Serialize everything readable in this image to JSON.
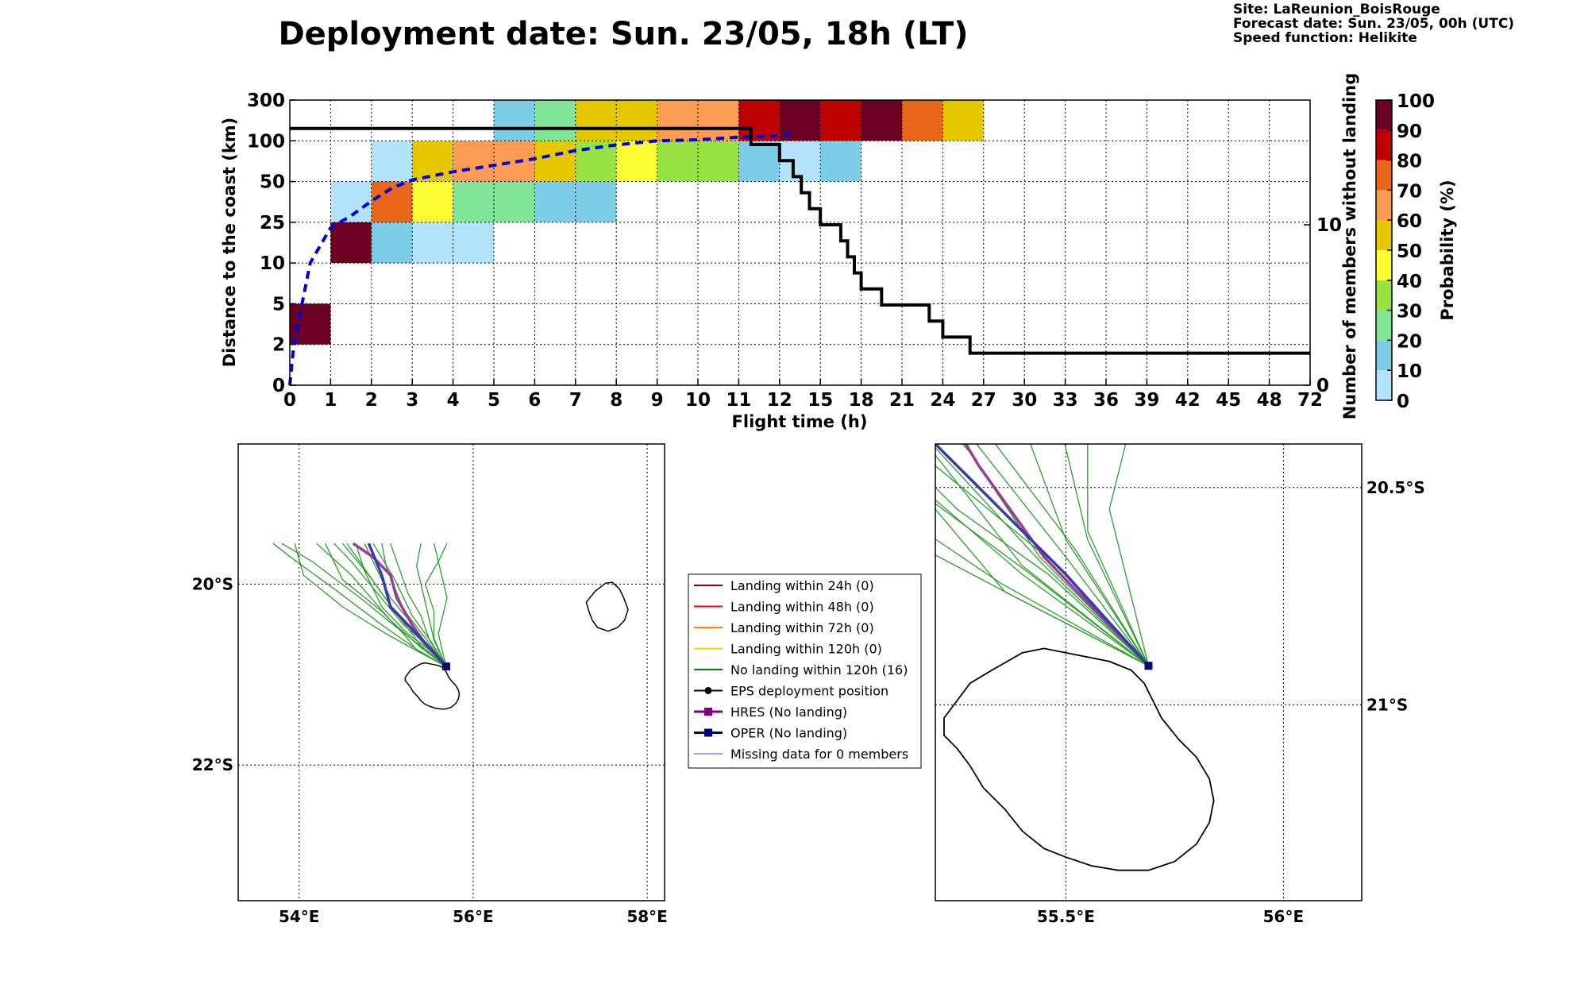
{
  "header": {
    "title": "Deployment date: Sun. 23/05, 18h (LT)",
    "site": "Site: LaReunion_BoisRouge",
    "forecast": "Forecast date: Sun. 23/05, 00h (UTC)",
    "speed": "Speed function: Helikite"
  },
  "colors": {
    "prob": [
      "#b3e3fb",
      "#7ecde6",
      "#80e597",
      "#98e343",
      "#fdfd33",
      "#e5c800",
      "#fd9c55",
      "#e8671a",
      "#bd0000",
      "#6b0022"
    ],
    "dashed": "#0000dd",
    "steps": "#000000"
  },
  "chart_data": [
    {
      "type": "heatmap",
      "xlabel": "Flight time (h)",
      "ylabel": "Distance to the coast (km)",
      "ylabel_right": "Number of members without landing",
      "x_ticks": [
        "0",
        "1",
        "2",
        "3",
        "4",
        "5",
        "6",
        "7",
        "8",
        "9",
        "10",
        "11",
        "12",
        "15",
        "18",
        "21",
        "24",
        "27",
        "30",
        "33",
        "36",
        "39",
        "42",
        "45",
        "48",
        "72"
      ],
      "y_ticks": [
        "0",
        "2",
        "5",
        "10",
        "25",
        "50",
        "100",
        "300"
      ],
      "y_right_ticks": [
        "0",
        "10"
      ],
      "colorbar": {
        "label": "Probability (%)",
        "ticks": [
          "0",
          "10",
          "20",
          "30",
          "40",
          "50",
          "60",
          "70",
          "80",
          "90",
          "100"
        ]
      },
      "grid": true,
      "cells": [
        {
          "t": "0-1",
          "d": "2-5",
          "p": 100
        },
        {
          "t": "1-2",
          "d": "10-25",
          "p": 100
        },
        {
          "t": "1-2",
          "d": "25-50",
          "p": 0
        },
        {
          "t": "2-3",
          "d": "10-25",
          "p": 10
        },
        {
          "t": "2-3",
          "d": "25-50",
          "p": 70
        },
        {
          "t": "2-3",
          "d": "50-100",
          "p": 0
        },
        {
          "t": "3-4",
          "d": "10-25",
          "p": 0
        },
        {
          "t": "3-4",
          "d": "25-50",
          "p": 40
        },
        {
          "t": "3-4",
          "d": "50-100",
          "p": 50
        },
        {
          "t": "4-5",
          "d": "10-25",
          "p": 0
        },
        {
          "t": "4-5",
          "d": "25-50",
          "p": 20
        },
        {
          "t": "4-5",
          "d": "50-100",
          "p": 60
        },
        {
          "t": "5-6",
          "d": "25-50",
          "p": 20
        },
        {
          "t": "5-6",
          "d": "50-100",
          "p": 60
        },
        {
          "t": "5-6",
          "d": "100-300",
          "p": 10
        },
        {
          "t": "6-7",
          "d": "25-50",
          "p": 10
        },
        {
          "t": "6-7",
          "d": "50-100",
          "p": 50
        },
        {
          "t": "6-7",
          "d": "100-300",
          "p": 20
        },
        {
          "t": "7-8",
          "d": "25-50",
          "p": 10
        },
        {
          "t": "7-8",
          "d": "50-100",
          "p": 30
        },
        {
          "t": "7-8",
          "d": "100-300",
          "p": 50
        },
        {
          "t": "8-9",
          "d": "50-100",
          "p": 40
        },
        {
          "t": "8-9",
          "d": "100-300",
          "p": 50
        },
        {
          "t": "9-10",
          "d": "50-100",
          "p": 30
        },
        {
          "t": "9-10",
          "d": "100-300",
          "p": 60
        },
        {
          "t": "10-11",
          "d": "50-100",
          "p": 30
        },
        {
          "t": "10-11",
          "d": "100-300",
          "p": 60
        },
        {
          "t": "11-12",
          "d": "50-100",
          "p": 10
        },
        {
          "t": "11-12",
          "d": "100-300",
          "p": 80
        },
        {
          "t": "12-15",
          "d": "50-100",
          "p": 0
        },
        {
          "t": "12-15",
          "d": "100-300",
          "p": 90
        },
        {
          "t": "15-18",
          "d": "50-100",
          "p": 10
        },
        {
          "t": "15-18",
          "d": "100-300",
          "p": 80
        },
        {
          "t": "18-21",
          "d": "100-300",
          "p": 90
        },
        {
          "t": "21-24",
          "d": "100-300",
          "p": 70
        },
        {
          "t": "24-27",
          "d": "100-300",
          "p": 50
        }
      ],
      "series": [
        {
          "type": "line",
          "style": "dashed",
          "points": [
            [
              0,
              0
            ],
            [
              0.1,
              2
            ],
            [
              0.3,
              5
            ],
            [
              0.5,
              10
            ],
            [
              1,
              23
            ],
            [
              1.5,
              29
            ],
            [
              2,
              38
            ],
            [
              2.5,
              46
            ],
            [
              3,
              52
            ],
            [
              4,
              62
            ],
            [
              5,
              70
            ],
            [
              6,
              78
            ],
            [
              7,
              88
            ],
            [
              8,
              95
            ],
            [
              9,
              100
            ],
            [
              10,
              105
            ],
            [
              11,
              118
            ],
            [
              12,
              126
            ],
            [
              13,
              140
            ]
          ]
        },
        {
          "type": "step",
          "axis": "right",
          "points": [
            [
              0,
              16
            ],
            [
              11.3,
              16
            ],
            [
              11.3,
              15
            ],
            [
              12,
              15
            ],
            [
              12,
              14
            ],
            [
              13,
              14
            ],
            [
              13,
              13
            ],
            [
              13.6,
              13
            ],
            [
              13.6,
              12
            ],
            [
              14.2,
              12
            ],
            [
              14.2,
              11
            ],
            [
              15,
              11
            ],
            [
              15,
              10
            ],
            [
              16.5,
              10
            ],
            [
              16.5,
              9
            ],
            [
              17,
              9
            ],
            [
              17,
              8
            ],
            [
              17.5,
              8
            ],
            [
              17.5,
              7
            ],
            [
              18,
              7
            ],
            [
              18,
              6
            ],
            [
              19.5,
              6
            ],
            [
              19.5,
              5
            ],
            [
              23,
              5
            ],
            [
              23,
              4
            ],
            [
              24,
              4
            ],
            [
              24,
              3
            ],
            [
              26,
              3
            ],
            [
              26,
              2
            ],
            [
              72,
              2
            ]
          ]
        }
      ]
    },
    {
      "type": "map",
      "x_ticks": [
        "54°E",
        "56°E",
        "58°E"
      ],
      "y_ticks": [
        "20°S",
        "22°S"
      ],
      "lon_range": [
        53.3,
        58.2
      ],
      "lat_range": [
        -23.5,
        -18.45
      ]
    },
    {
      "type": "map",
      "x_ticks": [
        "55.5°E",
        "56°E"
      ],
      "y_ticks": [
        "20.5°S",
        "21°S"
      ],
      "lon_range": [
        55.2,
        56.18
      ],
      "lat_range": [
        -21.45,
        -20.4
      ]
    }
  ],
  "legend": [
    {
      "label": "Landing within 24h (0)",
      "color": "#8b0000",
      "marker": "none",
      "width": 2
    },
    {
      "label": "Landing within 48h (0)",
      "color": "#ff0000",
      "marker": "none",
      "width": 2
    },
    {
      "label": "Landing within 72h (0)",
      "color": "#ff8c00",
      "marker": "none",
      "width": 2
    },
    {
      "label": "Landing within 120h (0)",
      "color": "#ffd700",
      "marker": "none",
      "width": 2
    },
    {
      "label": "No landing within 120h (16)",
      "color": "#008000",
      "marker": "none",
      "width": 2
    },
    {
      "label": "EPS deployment position",
      "color": "#000000",
      "marker": "circle",
      "width": 2
    },
    {
      "label": "HRES (No landing)",
      "color": "#800080",
      "marker": "square",
      "width": 3
    },
    {
      "label": "OPER (No landing)",
      "color": "#000080",
      "marker": "square",
      "width": 3
    },
    {
      "label": "Missing data for 0 members",
      "color": "#4040ff",
      "marker": "none",
      "width": 1
    }
  ]
}
